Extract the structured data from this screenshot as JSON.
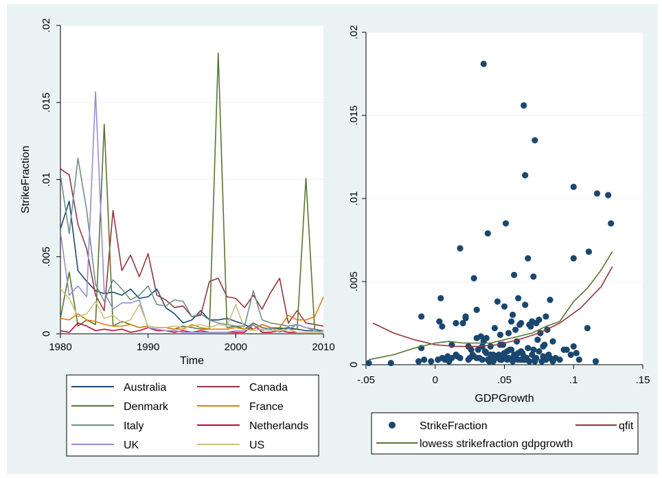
{
  "chart_data": [
    {
      "type": "line",
      "xlabel": "Time",
      "ylabel": "StrikeFraction",
      "xlim": [
        1980,
        2010
      ],
      "ylim": [
        0,
        0.02
      ],
      "x_ticks": [
        "1980",
        "1990",
        "2000",
        "2010"
      ],
      "y_ticks": [
        "0",
        ".005",
        ".01",
        ".015",
        ".02"
      ],
      "grid": true,
      "legend_position": "below",
      "series": [
        {
          "name": "Australia",
          "color": "#1a476f",
          "x": [
            1980,
            1981,
            1982,
            1983,
            1984,
            1985,
            1986,
            1987,
            1988,
            1989,
            1990,
            1991,
            1992,
            1993,
            1994,
            1995,
            1996,
            1997,
            1998,
            1999,
            2000,
            2001,
            2002,
            2003,
            2004,
            2005,
            2006,
            2007,
            2008,
            2009,
            2010
          ],
          "y": [
            0.0068,
            0.0086,
            0.0041,
            0.0034,
            0.0028,
            0.0026,
            0.0027,
            0.0025,
            0.0029,
            0.0023,
            0.0024,
            0.0029,
            0.0017,
            0.0013,
            0.0007,
            0.0009,
            0.0015,
            0.0009,
            0.0009,
            0.001,
            0.0008,
            0.0006,
            0.0003,
            0.0006,
            0.0004,
            0.0003,
            0.0004,
            0.0003,
            0.0002,
            0.0002,
            0.0002
          ]
        },
        {
          "name": "Canada",
          "color": "#90353b",
          "x": [
            1980,
            1981,
            1982,
            1983,
            1984,
            1985,
            1986,
            1987,
            1988,
            1989,
            1990,
            1991,
            1992,
            1993,
            1994,
            1995,
            1996,
            1997,
            1998,
            1999,
            2000,
            2001,
            2002,
            2003,
            2004,
            2005,
            2006,
            2007,
            2008,
            2009,
            2010
          ],
          "y": [
            0.0107,
            0.0103,
            0.0071,
            0.0055,
            0.0025,
            0.0015,
            0.008,
            0.0041,
            0.0051,
            0.0037,
            0.0052,
            0.0025,
            0.0022,
            0.0017,
            0.0018,
            0.0011,
            0.0012,
            0.0034,
            0.0036,
            0.0024,
            0.0023,
            0.0017,
            0.0025,
            0.0016,
            0.0027,
            0.0036,
            0.0007,
            0.0015,
            0.0007,
            0.0006,
            0.0005
          ]
        },
        {
          "name": "Denmark",
          "color": "#55752f",
          "x": [
            1980,
            1981,
            1982,
            1983,
            1984,
            1985,
            1986,
            1987,
            1988,
            1989,
            1990,
            1991,
            1992,
            1993,
            1994,
            1995,
            1996,
            1997,
            1998,
            1999,
            2000,
            2001,
            2002,
            2003,
            2004,
            2005,
            2006,
            2007,
            2008,
            2009,
            2010
          ],
          "y": [
            0.001,
            0.004,
            0.0005,
            0.0009,
            0.0006,
            0.0136,
            0.0005,
            0.0008,
            0.0006,
            0.0004,
            0.0005,
            0.0004,
            0.0004,
            0.0003,
            0.0005,
            0.0004,
            0.0003,
            0.0003,
            0.0182,
            0.0004,
            0.0005,
            0.0003,
            0.0007,
            0.0004,
            0.0003,
            0.0004,
            0.0003,
            0.0003,
            0.0101,
            0.0003,
            0.0002
          ]
        },
        {
          "name": "France",
          "color": "#e37e00",
          "x": [
            1980,
            1981,
            1982,
            1983,
            1984,
            1985,
            1986,
            1987,
            1988,
            1989,
            1990,
            1991,
            1992,
            1993,
            1994,
            1995,
            1996,
            1997,
            1998,
            1999,
            2000,
            2001,
            2002,
            2003,
            2004,
            2005,
            2006,
            2007,
            2008,
            2009,
            2010
          ],
          "y": [
            0.001,
            0.0009,
            0.0013,
            0.0009,
            0.0008,
            0.0006,
            0.0005,
            0.0005,
            0.0006,
            0.0004,
            0.0005,
            0.0004,
            0.0004,
            0.0003,
            0.0003,
            0.0006,
            0.0004,
            0.0003,
            0.0003,
            0.0003,
            0.0004,
            0.0003,
            0.0003,
            0.0006,
            0.0004,
            0.0004,
            0.0012,
            0.0009,
            0.0009,
            0.0011,
            0.0024
          ]
        },
        {
          "name": "Italy",
          "color": "#6e8e84",
          "x": [
            1980,
            1981,
            1982,
            1983,
            1984,
            1985,
            1986,
            1987,
            1988,
            1989,
            1990,
            1991,
            1992,
            1993,
            1994,
            1995,
            1996,
            1997,
            1998,
            1999,
            2000,
            2001,
            2002,
            2003,
            2004,
            2005,
            2006,
            2007,
            2008,
            2009,
            2010
          ],
          "y": [
            0.0103,
            0.0065,
            0.0114,
            0.008,
            0.0032,
            0.0021,
            0.0035,
            0.0029,
            0.0022,
            0.0025,
            0.0031,
            0.0019,
            0.0018,
            0.0022,
            0.0021,
            0.0011,
            0.0013,
            0.0009,
            0.0007,
            0.0006,
            0.0005,
            0.0005,
            0.0028,
            0.0009,
            0.0007,
            0.0006,
            0.0005,
            0.0006,
            0.0004,
            0.0003,
            0.0002
          ]
        },
        {
          "name": "Netherlands",
          "color": "#c10534",
          "x": [
            1980,
            1981,
            1982,
            1983,
            1984,
            1985,
            1986,
            1987,
            1988,
            1989,
            1990,
            1991,
            1992,
            1993,
            1994,
            1995,
            1996,
            1997,
            1998,
            1999,
            2000,
            2001,
            2002,
            2003,
            2004,
            2005,
            2006,
            2007,
            2008,
            2009,
            2010
          ],
          "y": [
            0.0002,
            0.0001,
            0.0007,
            0.0005,
            0.0002,
            0.0003,
            0.0002,
            0.0003,
            0.0001,
            0.0002,
            0.0004,
            0.0002,
            0.0002,
            0.0001,
            0.0002,
            0.0001,
            0.0002,
            0.0001,
            0.0001,
            0.0001,
            0.0001,
            0.0001,
            0.0006,
            0.0001,
            0.0001,
            0.0002,
            0.0001,
            0.0001,
            0.0001,
            0.0001,
            0.0001
          ]
        },
        {
          "name": "UK",
          "color": "#938dd2",
          "x": [
            1980,
            1981,
            1982,
            1983,
            1984,
            1985,
            1986,
            1987,
            1988,
            1989,
            1990,
            1991,
            1992,
            1993,
            1994,
            1995,
            1996,
            1997,
            1998,
            1999,
            2000,
            2001,
            2002,
            2003,
            2004,
            2005,
            2006,
            2007,
            2008,
            2009,
            2010
          ],
          "y": [
            0.0066,
            0.0025,
            0.0031,
            0.0024,
            0.0157,
            0.0027,
            0.0016,
            0.002,
            0.002,
            0.0022,
            0.0004,
            0.0003,
            0.0002,
            0.0002,
            0.0001,
            0.0001,
            0.0001,
            0.0001,
            0.0001,
            0.0001,
            0.0002,
            0.0002,
            0.0006,
            0.0002,
            0.0004,
            0.0001,
            0.0003,
            0.0006,
            0.0004,
            0.0002,
            0.0001
          ]
        },
        {
          "name": "US",
          "color": "#cac27e",
          "x": [
            1980,
            1981,
            1982,
            1983,
            1984,
            1985,
            1986,
            1987,
            1988,
            1989,
            1990,
            1991,
            1992,
            1993,
            1994,
            1995,
            1996,
            1997,
            1998,
            1999,
            2000,
            2001,
            2002,
            2003,
            2004,
            2005,
            2006,
            2007,
            2008,
            2009,
            2010
          ],
          "y": [
            0.0029,
            0.0023,
            0.0011,
            0.0013,
            0.0021,
            0.001,
            0.0012,
            0.0007,
            0.0009,
            0.0019,
            0.0005,
            0.0004,
            0.0004,
            0.0005,
            0.0004,
            0.0005,
            0.0006,
            0.0004,
            0.0006,
            0.0005,
            0.0019,
            0.0003,
            0.0002,
            0.0003,
            0.0002,
            0.0002,
            0.0003,
            0.0001,
            0.0001,
            0.0001,
            0.0001
          ]
        }
      ]
    },
    {
      "type": "scatter",
      "xlabel": "GDPGrowth",
      "ylabel": "",
      "xlim": [
        -0.05,
        0.15
      ],
      "ylim": [
        0,
        0.02
      ],
      "x_ticks": [
        "-.05",
        "0",
        ".05",
        ".1",
        ".15"
      ],
      "y_ticks": [
        "0",
        ".005",
        ".01",
        ".015",
        ".02"
      ],
      "grid": true,
      "legend_position": "below",
      "series": [
        {
          "name": "StrikeFraction",
          "kind": "scatter",
          "color": "#1a476f",
          "x": [
            -0.048,
            -0.032,
            -0.012,
            -0.01,
            -0.01,
            -0.008,
            -0.003,
            0.003,
            0.005,
            0.005,
            0.007,
            0.008,
            0.01,
            0.012,
            0.015,
            0.016,
            0.018,
            0.02,
            0.022,
            0.024,
            0.025,
            0.027,
            0.028,
            0.03,
            0.032,
            0.034,
            0.035,
            0.037,
            0.038,
            0.04,
            0.042,
            0.044,
            0.045,
            0.047,
            0.048,
            0.05,
            0.052,
            0.053,
            0.055,
            0.056,
            0.058,
            0.06,
            0.062,
            0.064,
            0.065,
            0.066,
            0.068,
            0.07,
            0.072,
            0.073,
            0.075,
            0.077,
            0.078,
            0.08,
            0.082,
            0.083,
            0.085,
            0.087,
            0.09,
            0.093,
            0.095,
            0.098,
            0.1,
            0.102,
            0.104,
            0.11,
            0.116,
            0.035,
            0.064,
            0.072,
            0.065,
            0.1,
            0.117,
            0.125,
            0.127,
            0.051,
            0.038,
            0.018,
            0.111,
            0.1,
            0.067,
            0.028,
            0.071,
            0.057,
            0.004,
            0.045,
            0.06,
            0.083,
            0.03,
            0.015,
            0.022,
            0.05,
            0.075,
            0.08,
            0.056,
            0.062,
            0.07,
            0.065,
            0.043,
            0.058,
            0.034,
            0.026,
            0.047,
            0.053,
            0.069,
            0.076,
            0.081,
            0.085,
            0.04,
            0.033,
            0.061,
            0.055,
            0.073,
            0.068,
            0.012,
            0.002,
            0.009,
            0.024,
            0.031,
            0.037,
            0.049,
            0.059,
            0.074,
            0.078,
            0.036,
            0.046,
            0.063,
            0.071,
            0.044,
            0.052,
            0.06,
            0.067,
            0.079,
            0.042,
            0.054,
            0.066,
            0.048,
            0.057,
            0.039,
            0.041,
            0.05,
            0.062,
            0.072,
            0.03,
            0.047,
            0.056,
            0.064
          ],
          "y": [
            0.0001,
            0.0001,
            0.0002,
            0.0029,
            0.001,
            0.0003,
            0.0002,
            0.0026,
            0.0023,
            0.0004,
            0.0003,
            0.0004,
            0.0002,
            0.0004,
            0.0006,
            0.0005,
            0.0004,
            0.0025,
            0.0028,
            0.0003,
            0.0004,
            0.0006,
            0.0005,
            0.0016,
            0.0004,
            0.0003,
            0.0014,
            0.0016,
            0.0003,
            0.0006,
            0.0002,
            0.0005,
            0.0004,
            0.0012,
            0.0003,
            0.0007,
            0.0003,
            0.0004,
            0.0009,
            0.0004,
            0.0005,
            0.0003,
            0.0008,
            0.0005,
            0.0003,
            0.0004,
            0.0002,
            0.0006,
            0.0003,
            0.0004,
            0.0008,
            0.0002,
            0.0005,
            0.0003,
            0.0006,
            0.0004,
            0.0002,
            0.0004,
            0.0003,
            0.0009,
            0.0009,
            0.0006,
            0.0011,
            0.0007,
            0.0003,
            0.0022,
            0.0002,
            0.0181,
            0.0156,
            0.0135,
            0.0114,
            0.0107,
            0.0103,
            0.0102,
            0.0085,
            0.0085,
            0.0079,
            0.007,
            0.0068,
            0.0064,
            0.0064,
            0.0052,
            0.0053,
            0.0054,
            0.004,
            0.0038,
            0.004,
            0.0039,
            0.0033,
            0.0025,
            0.0029,
            0.0035,
            0.0027,
            0.0029,
            0.003,
            0.0025,
            0.0026,
            0.0036,
            0.0022,
            0.0021,
            0.0011,
            0.0009,
            0.0018,
            0.0019,
            0.0023,
            0.0019,
            0.0021,
            0.0014,
            0.0011,
            0.0017,
            0.0024,
            0.0026,
            0.0025,
            0.0024,
            0.0012,
            0.0003,
            0.0005,
            0.0011,
            0.0009,
            0.0007,
            0.0012,
            0.0014,
            0.0015,
            0.0011,
            0.0008,
            0.0006,
            0.0007,
            0.0009,
            0.0005,
            0.0008,
            0.0007,
            0.001,
            0.0012,
            0.0006,
            0.0009,
            0.0004,
            0.0003,
            0.0006,
            0.0002,
            0.0004,
            0.0005,
            0.0003,
            0.0002,
            0.0004,
            0.0003,
            0.0002,
            0.0003
          ]
        },
        {
          "name": "qfit",
          "kind": "line",
          "color": "#90353b",
          "x": [
            -0.045,
            -0.03,
            -0.015,
            0,
            0.015,
            0.03,
            0.045,
            0.06,
            0.075,
            0.09,
            0.105,
            0.12,
            0.128
          ],
          "y": [
            0.0025,
            0.0019,
            0.0015,
            0.0012,
            0.0011,
            0.0011,
            0.0012,
            0.0015,
            0.0019,
            0.0025,
            0.0034,
            0.0047,
            0.0059
          ]
        },
        {
          "name": "lowess strikefraction gdpgrowth",
          "kind": "line",
          "color": "#55752f",
          "x": [
            -0.048,
            -0.03,
            -0.015,
            0,
            0.01,
            0.02,
            0.03,
            0.04,
            0.05,
            0.06,
            0.07,
            0.08,
            0.09,
            0.1,
            0.11,
            0.12,
            0.128
          ],
          "y": [
            0.0003,
            0.0006,
            0.001,
            0.0013,
            0.0014,
            0.0013,
            0.0013,
            0.0013,
            0.0015,
            0.0017,
            0.0019,
            0.0023,
            0.0026,
            0.0038,
            0.0046,
            0.0057,
            0.0068
          ]
        }
      ]
    }
  ]
}
